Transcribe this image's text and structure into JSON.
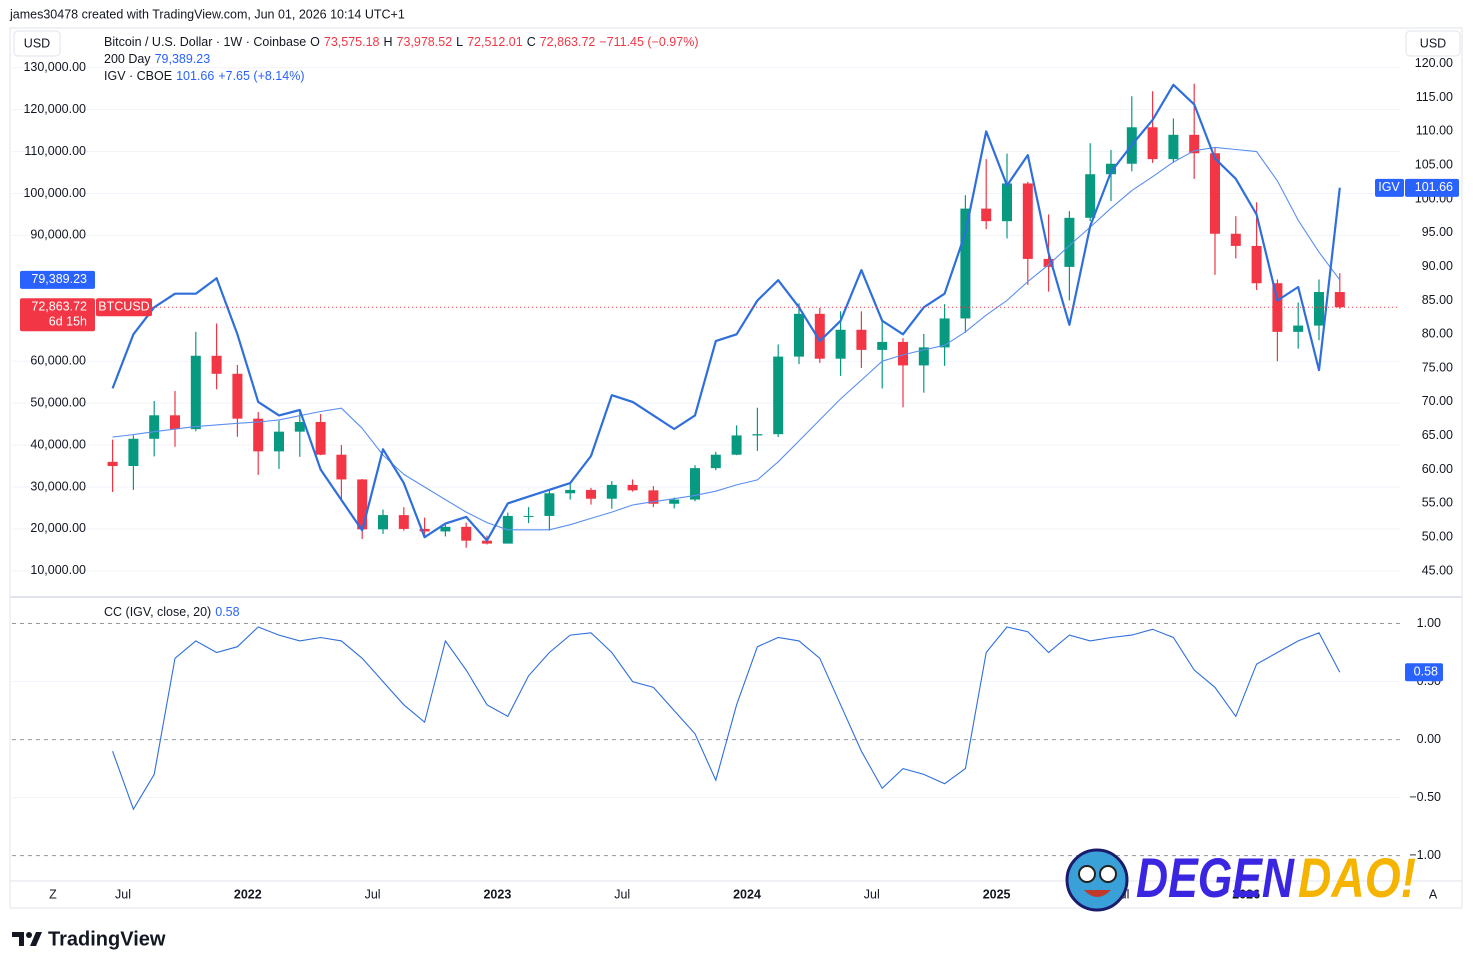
{
  "header": {
    "attribution": "james30478 created with TradingView.com, Jun 01, 2026 10:14 UTC+1"
  },
  "footer": {
    "brand": "TradingView",
    "watermark": [
      "DEGEN",
      "DAO!"
    ],
    "axis_buttons": [
      "Z",
      "A"
    ]
  },
  "chart_data": [
    {
      "type": "candlestick",
      "y_unit": "USD",
      "y2_unit": "USD",
      "categories": [
        "2021-06",
        "2021-07",
        "2021-08",
        "2021-09",
        "2021-10",
        "2021-11",
        "2021-12",
        "2022-01",
        "2022-02",
        "2022-03",
        "2022-04",
        "2022-05",
        "2022-06",
        "2022-07",
        "2022-08",
        "2022-09",
        "2022-10",
        "2022-11",
        "2022-12",
        "2023-01",
        "2023-02",
        "2023-03",
        "2023-04",
        "2023-05",
        "2023-06",
        "2023-07",
        "2023-08",
        "2023-09",
        "2023-10",
        "2023-11",
        "2023-12",
        "2024-01",
        "2024-02",
        "2024-03",
        "2024-04",
        "2024-05",
        "2024-06",
        "2024-07",
        "2024-08",
        "2024-09",
        "2024-10",
        "2024-11",
        "2024-12",
        "2025-01",
        "2025-02",
        "2025-03",
        "2025-04",
        "2025-05",
        "2025-06",
        "2025-07",
        "2025-08",
        "2025-09",
        "2025-10",
        "2025-11",
        "2025-12",
        "2026-01",
        "2026-02",
        "2026-03",
        "2026-04",
        "2026-05"
      ],
      "xticks": [
        {
          "value": "2021-07",
          "label": "Jul"
        },
        {
          "value": "2022-01",
          "label": "2022"
        },
        {
          "value": "2022-07",
          "label": "Jul"
        },
        {
          "value": "2023-01",
          "label": "2023"
        },
        {
          "value": "2023-07",
          "label": "Jul"
        },
        {
          "value": "2024-01",
          "label": "2024"
        },
        {
          "value": "2024-07",
          "label": "Jul"
        },
        {
          "value": "2025-01",
          "label": "2025"
        },
        {
          "value": "2025-07",
          "label": "Jul"
        },
        {
          "value": "2026-01",
          "label": "2026"
        }
      ],
      "ylim": [
        4000,
        139000
      ],
      "yticks": [
        {
          "value": 10000,
          "label": "10,000.00"
        },
        {
          "value": 20000,
          "label": "20,000.00"
        },
        {
          "value": 30000,
          "label": "30,000.00"
        },
        {
          "value": 40000,
          "label": "40,000.00"
        },
        {
          "value": 50000,
          "label": "50,000.00"
        },
        {
          "value": 60000,
          "label": "60,000.00"
        },
        {
          "value": 90000,
          "label": "90,000.00"
        },
        {
          "value": 100000,
          "label": "100,000.00"
        },
        {
          "value": 110000,
          "label": "110,000.00"
        },
        {
          "value": 120000,
          "label": "120,000.00"
        },
        {
          "value": 130000,
          "label": "130,000.00"
        }
      ],
      "y2lim": [
        41.3,
        125
      ],
      "y2ticks": [
        {
          "value": 45,
          "label": "45.00"
        },
        {
          "value": 50,
          "label": "50.00"
        },
        {
          "value": 55,
          "label": "55.00"
        },
        {
          "value": 60,
          "label": "60.00"
        },
        {
          "value": 65,
          "label": "65.00"
        },
        {
          "value": 70,
          "label": "70.00"
        },
        {
          "value": 75,
          "label": "75.00"
        },
        {
          "value": 80,
          "label": "80.00"
        },
        {
          "value": 85,
          "label": "85.00"
        },
        {
          "value": 90,
          "label": "90.00"
        },
        {
          "value": 95,
          "label": "95.00"
        },
        {
          "value": 100,
          "label": "100.00"
        },
        {
          "value": 105,
          "label": "105.00"
        },
        {
          "value": 110,
          "label": "110.00"
        },
        {
          "value": 115,
          "label": "115.00"
        },
        {
          "value": 120,
          "label": "120.00"
        }
      ],
      "grid": true,
      "series": [
        {
          "name": "Bitcoin / U.S. Dollar · 1W · Coinbase",
          "symbol": "BTCUSD",
          "countdown": "6d 15h",
          "up_color": "#089981",
          "down_color": "#f23645",
          "legend_values": [
            "O",
            "73,575.18",
            "H",
            "73,978.52",
            "L",
            "72,512.01",
            "C",
            "72,863.72",
            "−711.45 (−0.97%)"
          ],
          "ohlc": [
            [
              36000,
              41300,
              28800,
              35000
            ],
            [
              35000,
              42300,
              29300,
              41500
            ],
            [
              41500,
              50500,
              37300,
              47100
            ],
            [
              47100,
              52900,
              39600,
              43800
            ],
            [
              43800,
              67000,
              43300,
              61300
            ],
            [
              61300,
              69000,
              53300,
              57000
            ],
            [
              57000,
              59100,
              42000,
              46300
            ],
            [
              46300,
              47900,
              32900,
              38500
            ],
            [
              38500,
              45800,
              34300,
              43200
            ],
            [
              43200,
              48200,
              37200,
              45500
            ],
            [
              45500,
              47400,
              37600,
              37700
            ],
            [
              37700,
              40000,
              26600,
              31800
            ],
            [
              31800,
              31900,
              17600,
              19900
            ],
            [
              19900,
              24600,
              18800,
              23300
            ],
            [
              23300,
              25200,
              19600,
              20000
            ],
            [
              20000,
              22700,
              18200,
              19400
            ],
            [
              19400,
              21000,
              18200,
              20500
            ],
            [
              20500,
              21500,
              15500,
              17200
            ],
            [
              17200,
              18400,
              16300,
              16500
            ],
            [
              16500,
              23900,
              16500,
              23100
            ],
            [
              23100,
              25200,
              21400,
              23100
            ],
            [
              23100,
              29200,
              19600,
              28500
            ],
            [
              28500,
              31000,
              27000,
              29300
            ],
            [
              29300,
              29800,
              25800,
              27200
            ],
            [
              27200,
              31400,
              24800,
              30500
            ],
            [
              30500,
              31800,
              28900,
              29200
            ],
            [
              29200,
              30200,
              25200,
              26000
            ],
            [
              26000,
              27500,
              24900,
              27000
            ],
            [
              27000,
              35200,
              26600,
              34500
            ],
            [
              34500,
              38400,
              34000,
              37700
            ],
            [
              37700,
              44700,
              37600,
              42300
            ],
            [
              42300,
              48900,
              38600,
              42600
            ],
            [
              42600,
              64000,
              41900,
              61100
            ],
            [
              61100,
              73800,
              59300,
              71300
            ],
            [
              71300,
              72700,
              59600,
              60600
            ],
            [
              60600,
              71900,
              56500,
              67500
            ],
            [
              67500,
              71900,
              58400,
              62700
            ],
            [
              62700,
              70000,
              53500,
              64600
            ],
            [
              64600,
              65500,
              49000,
              59000
            ],
            [
              59000,
              66500,
              52500,
              63300
            ],
            [
              63300,
              73600,
              58900,
              70200
            ],
            [
              70200,
              99600,
              66800,
              96400
            ],
            [
              96400,
              108200,
              91500,
              93400
            ],
            [
              93400,
              109500,
              89300,
              102400
            ],
            [
              102400,
              102800,
              78200,
              84400
            ],
            [
              84400,
              95000,
              76600,
              82500
            ],
            [
              82500,
              95800,
              74500,
              94200
            ],
            [
              94200,
              112000,
              93400,
              104600
            ],
            [
              104600,
              110400,
              98200,
              107100
            ],
            [
              107100,
              123200,
              105300,
              115800
            ],
            [
              115800,
              124400,
              107300,
              108200
            ],
            [
              108200,
              117900,
              107300,
              114000
            ],
            [
              114000,
              126200,
              103500,
              109600
            ],
            [
              109600,
              111000,
              80600,
              90400
            ],
            [
              90400,
              94600,
              84500,
              87500
            ],
            [
              87500,
              97900,
              77000,
              78600
            ],
            [
              78600,
              79500,
              60000,
              67000
            ],
            [
              67000,
              74000,
              63000,
              68500
            ],
            [
              68500,
              79500,
              65000,
              76500
            ],
            [
              76500,
              81000,
              72500,
              72863.72
            ]
          ]
        },
        {
          "name": "200 Day",
          "color": "#5b8ff0",
          "legend_values": [
            "79,389.23"
          ],
          "values": [
            41900,
            42500,
            43200,
            43800,
            44400,
            44800,
            45200,
            45500,
            46000,
            47000,
            48000,
            48800,
            44000,
            37600,
            33000,
            30000,
            27000,
            24000,
            21500,
            19800,
            19800,
            19800,
            21000,
            22500,
            24000,
            25700,
            26500,
            27200,
            28000,
            29000,
            30500,
            31700,
            36000,
            41000,
            46000,
            51000,
            55500,
            60000,
            61500,
            62700,
            63800,
            67000,
            71000,
            74500,
            79000,
            83000,
            87600,
            92000,
            96500,
            100700,
            104000,
            107500,
            110200,
            111000,
            110500,
            110000,
            103000,
            93600,
            86000,
            79389.23
          ]
        },
        {
          "name": "IGV · CBOE",
          "symbol": "IGV",
          "color": "#2f6fdc",
          "axis": "y2",
          "legend_values": [
            "101.66",
            "+7.65 (+8.14%)"
          ],
          "values": [
            72,
            80,
            84,
            86,
            86,
            88.3,
            80,
            70,
            68,
            68.8,
            60,
            55.5,
            51,
            63,
            58,
            50,
            52,
            53,
            49.5,
            55,
            56,
            57,
            58,
            62,
            71,
            70,
            68,
            66,
            68,
            79,
            80,
            85,
            88,
            84,
            79,
            82,
            89.5,
            82,
            80,
            84,
            86,
            95,
            110,
            102,
            106.5,
            92,
            81.4,
            96,
            104,
            108,
            111.7,
            116.9,
            114,
            106,
            103,
            97.7,
            85,
            87,
            74.7,
            101.66
          ]
        }
      ]
    },
    {
      "type": "line",
      "title": "CC (IGV, close, 20)",
      "legend_values": [
        "0.58"
      ],
      "color": "#2f6fdc",
      "ylim": [
        -1.21,
        1.22
      ],
      "yticks": [
        {
          "value": 1,
          "label": "1.00"
        },
        {
          "value": 0.5,
          "label": "0.50"
        },
        {
          "value": 0,
          "label": "0.00"
        },
        {
          "value": -0.5,
          "label": "−0.50"
        },
        {
          "value": -1,
          "label": "−1.00"
        }
      ],
      "values": [
        -0.1,
        -0.6,
        -0.3,
        0.7,
        0.85,
        0.75,
        0.8,
        0.97,
        0.9,
        0.85,
        0.88,
        0.85,
        0.7,
        0.5,
        0.3,
        0.15,
        0.85,
        0.6,
        0.3,
        0.2,
        0.55,
        0.75,
        0.9,
        0.92,
        0.75,
        0.5,
        0.45,
        0.25,
        0.05,
        -0.35,
        0.3,
        0.8,
        0.88,
        0.85,
        0.7,
        0.3,
        -0.1,
        -0.42,
        -0.25,
        -0.3,
        -0.38,
        -0.25,
        0.75,
        0.97,
        0.93,
        0.75,
        0.9,
        0.85,
        0.88,
        0.9,
        0.95,
        0.88,
        0.6,
        0.45,
        0.2,
        0.65,
        0.75,
        0.85,
        0.92,
        0.58
      ]
    }
  ]
}
